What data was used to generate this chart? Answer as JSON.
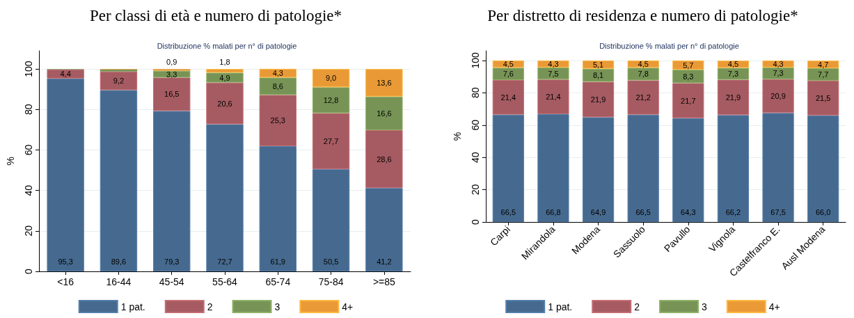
{
  "chart_data": [
    {
      "type": "bar",
      "title": "Per classi di età e numero di patologie*",
      "subtitle": "Distribuzione % malati per n° di patologie",
      "ylabel": "%",
      "categories": [
        "<16",
        "16-44",
        "45-54",
        "55-64",
        "65-74",
        "75-84",
        ">=85"
      ],
      "stacked": true,
      "ylim": [
        0,
        109
      ],
      "yticks": [
        0,
        20,
        40,
        60,
        80,
        100
      ],
      "grid": "y",
      "legend": "bottom",
      "series": [
        {
          "name": "1 pat.",
          "color": "#466a8f",
          "values": [
            95.3,
            89.6,
            79.3,
            72.7,
            61.9,
            50.5,
            41.2
          ],
          "value_labels": [
            "95,3",
            "89,6",
            "79,3",
            "72,7",
            "61,9",
            "50,5",
            "41,2"
          ]
        },
        {
          "name": "2",
          "color": "#a55b61",
          "values": [
            4.4,
            9.2,
            16.5,
            20.6,
            25.3,
            27.7,
            28.6
          ],
          "value_labels": [
            "4,4",
            "9,2",
            "16,5",
            "20,6",
            "25,3",
            "27,7",
            "28,6"
          ]
        },
        {
          "name": "3",
          "color": "#779456",
          "values": [
            0.3,
            0.9,
            3.3,
            4.9,
            8.6,
            12.8,
            16.6
          ],
          "value_labels": [
            null,
            null,
            "3,3",
            "4,9",
            "8,6",
            "12,8",
            "16,6"
          ]
        },
        {
          "name": "4+",
          "color": "#e99a36",
          "values": [
            null,
            0.3,
            0.9,
            1.8,
            4.3,
            9.0,
            13.6
          ],
          "value_labels": [
            null,
            null,
            "0,9",
            "1,8",
            "4,3",
            "9,0",
            "13,6"
          ]
        }
      ]
    },
    {
      "type": "bar",
      "title": "Per distretto di residenza e numero di patologie*",
      "subtitle": "Distribuzione % malati per n° di patologie",
      "ylabel": "%",
      "categories": [
        "Carpi",
        "Mirandola",
        "Modena",
        "Sassuolo",
        "Pavullo",
        "Vignola",
        "Castelfranco E.",
        "Ausl Modena"
      ],
      "stacked": true,
      "ylim": [
        0,
        106
      ],
      "yticks": [
        0,
        20,
        40,
        60,
        80,
        100
      ],
      "grid": "y",
      "legend": "bottom",
      "series": [
        {
          "name": "1 pat.",
          "color": "#466a8f",
          "values": [
            66.5,
            66.8,
            64.9,
            66.5,
            64.3,
            66.2,
            67.5,
            66.0
          ],
          "value_labels": [
            "66,5",
            "66,8",
            "64,9",
            "66,5",
            "64,3",
            "66,2",
            "67,5",
            "66,0"
          ]
        },
        {
          "name": "2",
          "color": "#a55b61",
          "values": [
            21.4,
            21.4,
            21.9,
            21.2,
            21.7,
            21.9,
            20.9,
            21.5
          ],
          "value_labels": [
            "21,4",
            "21,4",
            "21,9",
            "21,2",
            "21,7",
            "21,9",
            "20,9",
            "21,5"
          ]
        },
        {
          "name": "3",
          "color": "#779456",
          "values": [
            7.6,
            7.5,
            8.1,
            7.8,
            8.3,
            7.3,
            7.3,
            7.7
          ],
          "value_labels": [
            "7,6",
            "7,5",
            "8,1",
            "7,8",
            "8,3",
            "7,3",
            "7,3",
            "7,7"
          ]
        },
        {
          "name": "4+",
          "color": "#e99a36",
          "values": [
            4.5,
            4.3,
            5.1,
            4.5,
            5.7,
            4.5,
            4.3,
            4.7
          ],
          "value_labels": [
            "4,5",
            "4,3",
            "5,1",
            "4,5",
            "5,7",
            "4,5",
            "4,3",
            "4,7"
          ]
        }
      ]
    }
  ]
}
